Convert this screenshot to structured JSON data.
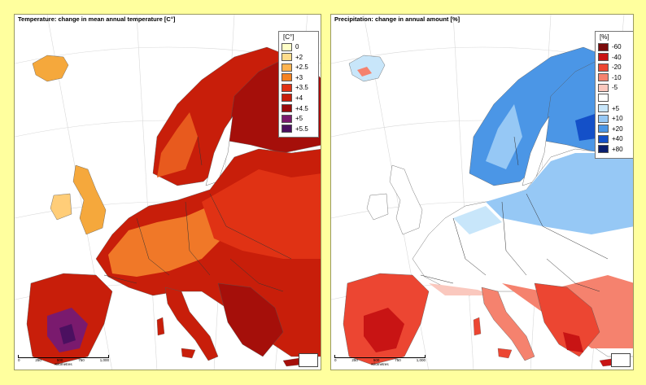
{
  "panels": {
    "temperature": {
      "title": "Temperature: change in mean annual temperature [C°]",
      "legend_unit": "[C°]",
      "legend": [
        {
          "label": "0",
          "color": "#ffffc8"
        },
        {
          "label": "+2",
          "color": "#ffdc8c"
        },
        {
          "label": "+2.5",
          "color": "#ffb450"
        },
        {
          "label": "+3",
          "color": "#f58220"
        },
        {
          "label": "+3.5",
          "color": "#e03214"
        },
        {
          "label": "+4",
          "color": "#c81e0a"
        },
        {
          "label": "+4.5",
          "color": "#9b0a0a"
        },
        {
          "label": "+5",
          "color": "#7a1a6e"
        },
        {
          "label": "+5.5",
          "color": "#4b1060"
        }
      ],
      "scale_ticks": [
        "0",
        "250",
        "500",
        "750",
        "1,000"
      ],
      "scale_unit": "Kilometres"
    },
    "precipitation": {
      "title": "Precipitation: change in annual amount [%]",
      "legend_unit": "[%]",
      "legend": [
        {
          "label": "-60",
          "color": "#7a0a0a"
        },
        {
          "label": "-40",
          "color": "#c81414"
        },
        {
          "label": "-20",
          "color": "#ec4632"
        },
        {
          "label": "-10",
          "color": "#f5826e"
        },
        {
          "label": "-5",
          "color": "#fac8be"
        },
        {
          "label": "",
          "color": "#ffffff"
        },
        {
          "label": "+5",
          "color": "#c8e6fa"
        },
        {
          "label": "+10",
          "color": "#96c8f5"
        },
        {
          "label": "+20",
          "color": "#4b96e6"
        },
        {
          "label": "+40",
          "color": "#1450c8"
        },
        {
          "label": "+80",
          "color": "#0a1e6e"
        }
      ],
      "scale_ticks": [
        "0",
        "250",
        "500",
        "750",
        "1,000"
      ],
      "scale_unit": "Kilometres"
    }
  }
}
